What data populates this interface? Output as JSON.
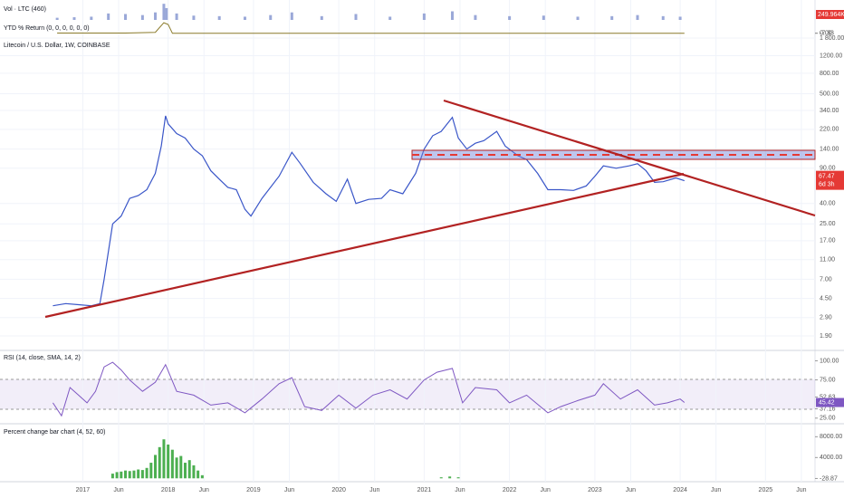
{
  "chart_data": [
    {
      "type": "bar",
      "title": "Vol · LTC (460)",
      "color": "#9aa8d8",
      "current_label": "249.964K",
      "x": [
        2016.7,
        2016.9,
        2017.1,
        2017.3,
        2017.5,
        2017.7,
        2017.85,
        2017.95,
        2017.98,
        2018.1,
        2018.3,
        2018.6,
        2018.9,
        2019.2,
        2019.45,
        2019.8,
        2020.2,
        2020.6,
        2021.0,
        2021.33,
        2021.6,
        2022.0,
        2022.4,
        2022.8,
        2023.2,
        2023.5,
        2023.8,
        2024.0
      ],
      "values": [
        20,
        25,
        30,
        60,
        55,
        45,
        70,
        150,
        110,
        60,
        40,
        35,
        30,
        45,
        70,
        35,
        55,
        30,
        60,
        80,
        45,
        35,
        40,
        30,
        35,
        45,
        35,
        30
      ],
      "ylim": [
        0,
        160
      ]
    },
    {
      "type": "line",
      "title": "YTD % Return (0, 0, 0, 0, 0, 0)",
      "color": "#8a7a2a",
      "x": [
        2016.7,
        2017.5,
        2017.85,
        2017.95,
        2018.0,
        2018.05,
        2019.0,
        2021.0,
        2023.0,
        2024.05
      ],
      "values": [
        0,
        0,
        20,
        300,
        250,
        -7,
        -7,
        -7,
        -7,
        -7.33
      ],
      "ylim": [
        -40,
        330
      ],
      "yticks": [
        {
          "value": 0,
          "label": "0.00"
        },
        -7.33
      ]
    },
    {
      "type": "line",
      "title": "Litecoin / U.S. Dollar, 1W, COINBASE",
      "color": "#3a56c8",
      "log": true,
      "countdown": "6d 3h",
      "x": [
        2016.65,
        2016.8,
        2016.95,
        2017.1,
        2017.2,
        2017.25,
        2017.35,
        2017.45,
        2017.55,
        2017.65,
        2017.75,
        2017.85,
        2017.92,
        2017.97,
        2018.0,
        2018.1,
        2018.2,
        2018.3,
        2018.4,
        2018.5,
        2018.6,
        2018.7,
        2018.8,
        2018.9,
        2018.97,
        2019.1,
        2019.3,
        2019.45,
        2019.55,
        2019.7,
        2019.85,
        2019.97,
        2020.1,
        2020.2,
        2020.35,
        2020.5,
        2020.6,
        2020.75,
        2020.9,
        2021.0,
        2021.1,
        2021.2,
        2021.33,
        2021.4,
        2021.5,
        2021.6,
        2021.7,
        2021.85,
        2021.95,
        2022.1,
        2022.2,
        2022.33,
        2022.45,
        2022.6,
        2022.75,
        2022.9,
        2023.0,
        2023.1,
        2023.25,
        2023.4,
        2023.5,
        2023.6,
        2023.7,
        2023.8,
        2023.95,
        2024.05
      ],
      "values": [
        3.8,
        4.0,
        3.9,
        3.8,
        4.0,
        7,
        25,
        30,
        45,
        48,
        55,
        80,
        150,
        300,
        250,
        200,
        180,
        140,
        120,
        85,
        70,
        58,
        55,
        35,
        30,
        45,
        75,
        130,
        100,
        65,
        50,
        42,
        70,
        40,
        44,
        45,
        55,
        50,
        80,
        140,
        190,
        210,
        290,
        180,
        140,
        160,
        170,
        210,
        150,
        120,
        110,
        80,
        55,
        55,
        54,
        60,
        75,
        95,
        90,
        95,
        100,
        85,
        65,
        66,
        72,
        67.47
      ],
      "ylim": [
        1.42,
        2311
      ],
      "yticks": [
        {
          "value": 1800,
          "label": "1 800.00"
        },
        {
          "value": 1200,
          "label": "1200.00"
        },
        {
          "value": 800,
          "label": "800.00"
        },
        {
          "value": 500,
          "label": "500.00"
        },
        {
          "value": 340,
          "label": "340.00"
        },
        {
          "value": 220,
          "label": "220.00"
        },
        {
          "value": 140,
          "label": "140.00"
        },
        {
          "value": 90,
          "label": "90.00"
        },
        {
          "value": 40,
          "label": "40.00"
        },
        {
          "value": 25,
          "label": "25.00"
        },
        {
          "value": 17,
          "label": "17.00"
        },
        {
          "value": 11,
          "label": "11.00"
        },
        {
          "value": 7,
          "label": "7.00"
        },
        {
          "value": 4.5,
          "label": "4.50"
        },
        {
          "value": 2.9,
          "label": "2.90"
        },
        {
          "value": 1.9,
          "label": "1.90"
        }
      ],
      "xlim": [
        2016.03,
        2025.58
      ],
      "xticks": [
        {
          "value": 2017,
          "label": "2017"
        },
        {
          "value": 2017.42,
          "label": "Jun"
        },
        {
          "value": 2018,
          "label": "2018"
        },
        {
          "value": 2018.42,
          "label": "Jun"
        },
        {
          "value": 2019,
          "label": "2019"
        },
        {
          "value": 2019.42,
          "label": "Jun"
        },
        {
          "value": 2020,
          "label": "2020"
        },
        {
          "value": 2020.42,
          "label": "Jun"
        },
        {
          "value": 2021,
          "label": "2021"
        },
        {
          "value": 2021.42,
          "label": "Jun"
        },
        {
          "value": 2022,
          "label": "2022"
        },
        {
          "value": 2022.42,
          "label": "Jun"
        },
        {
          "value": 2023,
          "label": "2023"
        },
        {
          "value": 2023.42,
          "label": "Jun"
        },
        {
          "value": 2024,
          "label": "2024"
        },
        {
          "value": 2024.42,
          "label": "Jun"
        },
        {
          "value": 2025,
          "label": "2025"
        },
        {
          "value": 2025.42,
          "label": "Jun"
        }
      ]
    },
    {
      "type": "line",
      "title": "RSI (14, close, SMA, 14, 2)",
      "color": "#7e57c2",
      "x": [
        2016.65,
        2016.75,
        2016.85,
        2016.95,
        2017.05,
        2017.15,
        2017.25,
        2017.35,
        2017.45,
        2017.55,
        2017.7,
        2017.85,
        2017.97,
        2018.1,
        2018.3,
        2018.5,
        2018.7,
        2018.9,
        2019.1,
        2019.3,
        2019.45,
        2019.6,
        2019.8,
        2020.0,
        2020.2,
        2020.4,
        2020.6,
        2020.8,
        2021.0,
        2021.15,
        2021.33,
        2021.45,
        2021.6,
        2021.85,
        2022.0,
        2022.2,
        2022.45,
        2022.6,
        2022.8,
        2023.0,
        2023.1,
        2023.3,
        2023.5,
        2023.7,
        2023.85,
        2024.0,
        2024.05
      ],
      "values": [
        45,
        28,
        65,
        55,
        45,
        60,
        92,
        98,
        88,
        75,
        60,
        72,
        95,
        60,
        55,
        42,
        45,
        32,
        50,
        70,
        78,
        40,
        35,
        55,
        38,
        55,
        62,
        50,
        75,
        85,
        90,
        45,
        65,
        62,
        45,
        55,
        32,
        40,
        48,
        55,
        70,
        50,
        62,
        42,
        45,
        50,
        45.42
      ],
      "ylim": [
        20,
        110
      ],
      "yticks": [
        {
          "value": 100,
          "label": "100.00"
        },
        {
          "value": 75,
          "label": "75.00"
        },
        52.63,
        37.16,
        {
          "value": 25,
          "label": "25.00"
        }
      ]
    },
    {
      "type": "bar",
      "title": "Percent change bar chart (4, 52, 60)",
      "color": "#4caf50",
      "x": [
        2017.35,
        2017.4,
        2017.45,
        2017.5,
        2017.55,
        2017.6,
        2017.65,
        2017.7,
        2017.75,
        2017.8,
        2017.85,
        2017.9,
        2017.95,
        2018.0,
        2018.05,
        2018.1,
        2018.15,
        2018.2,
        2018.25,
        2018.3,
        2018.35,
        2018.4,
        2021.2,
        2021.3,
        2021.4
      ],
      "values": [
        900,
        1200,
        1300,
        1500,
        1400,
        1500,
        1700,
        1600,
        2000,
        3000,
        4500,
        6000,
        7500,
        6500,
        5500,
        4000,
        4300,
        3000,
        3500,
        2500,
        1500,
        600,
        200,
        350,
        200
      ],
      "ylim": [
        -300,
        9800
      ],
      "yticks": [
        {
          "value": 8000,
          "label": "8000.00"
        },
        {
          "value": 4000,
          "label": "4000.00"
        },
        -28.87
      ]
    }
  ]
}
